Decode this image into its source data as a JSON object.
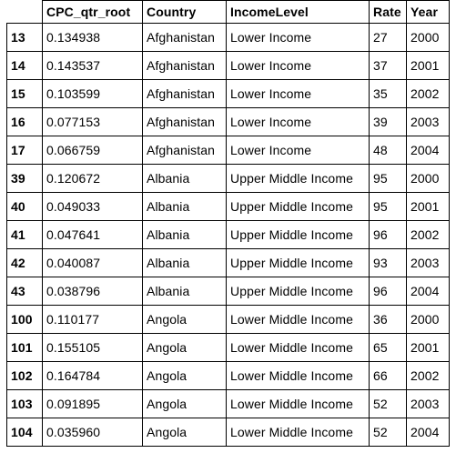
{
  "table": {
    "columns": [
      "",
      "CPC_qtr_root",
      "Country",
      "IncomeLevel",
      "Rate",
      "Year"
    ],
    "rows": [
      {
        "index": "13",
        "cells": [
          "0.134938",
          "Afghanistan",
          "Lower Income",
          "27",
          "2000"
        ]
      },
      {
        "index": "14",
        "cells": [
          "0.143537",
          "Afghanistan",
          "Lower Income",
          "37",
          "2001"
        ]
      },
      {
        "index": "15",
        "cells": [
          "0.103599",
          "Afghanistan",
          "Lower Income",
          "35",
          "2002"
        ]
      },
      {
        "index": "16",
        "cells": [
          "0.077153",
          "Afghanistan",
          "Lower Income",
          "39",
          "2003"
        ]
      },
      {
        "index": "17",
        "cells": [
          "0.066759",
          "Afghanistan",
          "Lower Income",
          "48",
          "2004"
        ]
      },
      {
        "index": "39",
        "cells": [
          "0.120672",
          "Albania",
          "Upper Middle Income",
          "95",
          "2000"
        ]
      },
      {
        "index": "40",
        "cells": [
          "0.049033",
          "Albania",
          "Upper Middle Income",
          "95",
          "2001"
        ]
      },
      {
        "index": "41",
        "cells": [
          "0.047641",
          "Albania",
          "Upper Middle Income",
          "96",
          "2002"
        ]
      },
      {
        "index": "42",
        "cells": [
          "0.040087",
          "Albania",
          "Upper Middle Income",
          "93",
          "2003"
        ]
      },
      {
        "index": "43",
        "cells": [
          "0.038796",
          "Albania",
          "Upper Middle Income",
          "96",
          "2004"
        ]
      },
      {
        "index": "100",
        "cells": [
          "0.110177",
          "Angola",
          "Lower Middle Income",
          "36",
          "2000"
        ]
      },
      {
        "index": "101",
        "cells": [
          "0.155105",
          "Angola",
          "Lower Middle Income",
          "65",
          "2001"
        ]
      },
      {
        "index": "102",
        "cells": [
          "0.164784",
          "Angola",
          "Lower Middle Income",
          "66",
          "2002"
        ]
      },
      {
        "index": "103",
        "cells": [
          "0.091895",
          "Angola",
          "Lower Middle Income",
          "52",
          "2003"
        ]
      },
      {
        "index": "104",
        "cells": [
          "0.035960",
          "Angola",
          "Lower Middle Income",
          "52",
          "2004"
        ]
      }
    ]
  }
}
